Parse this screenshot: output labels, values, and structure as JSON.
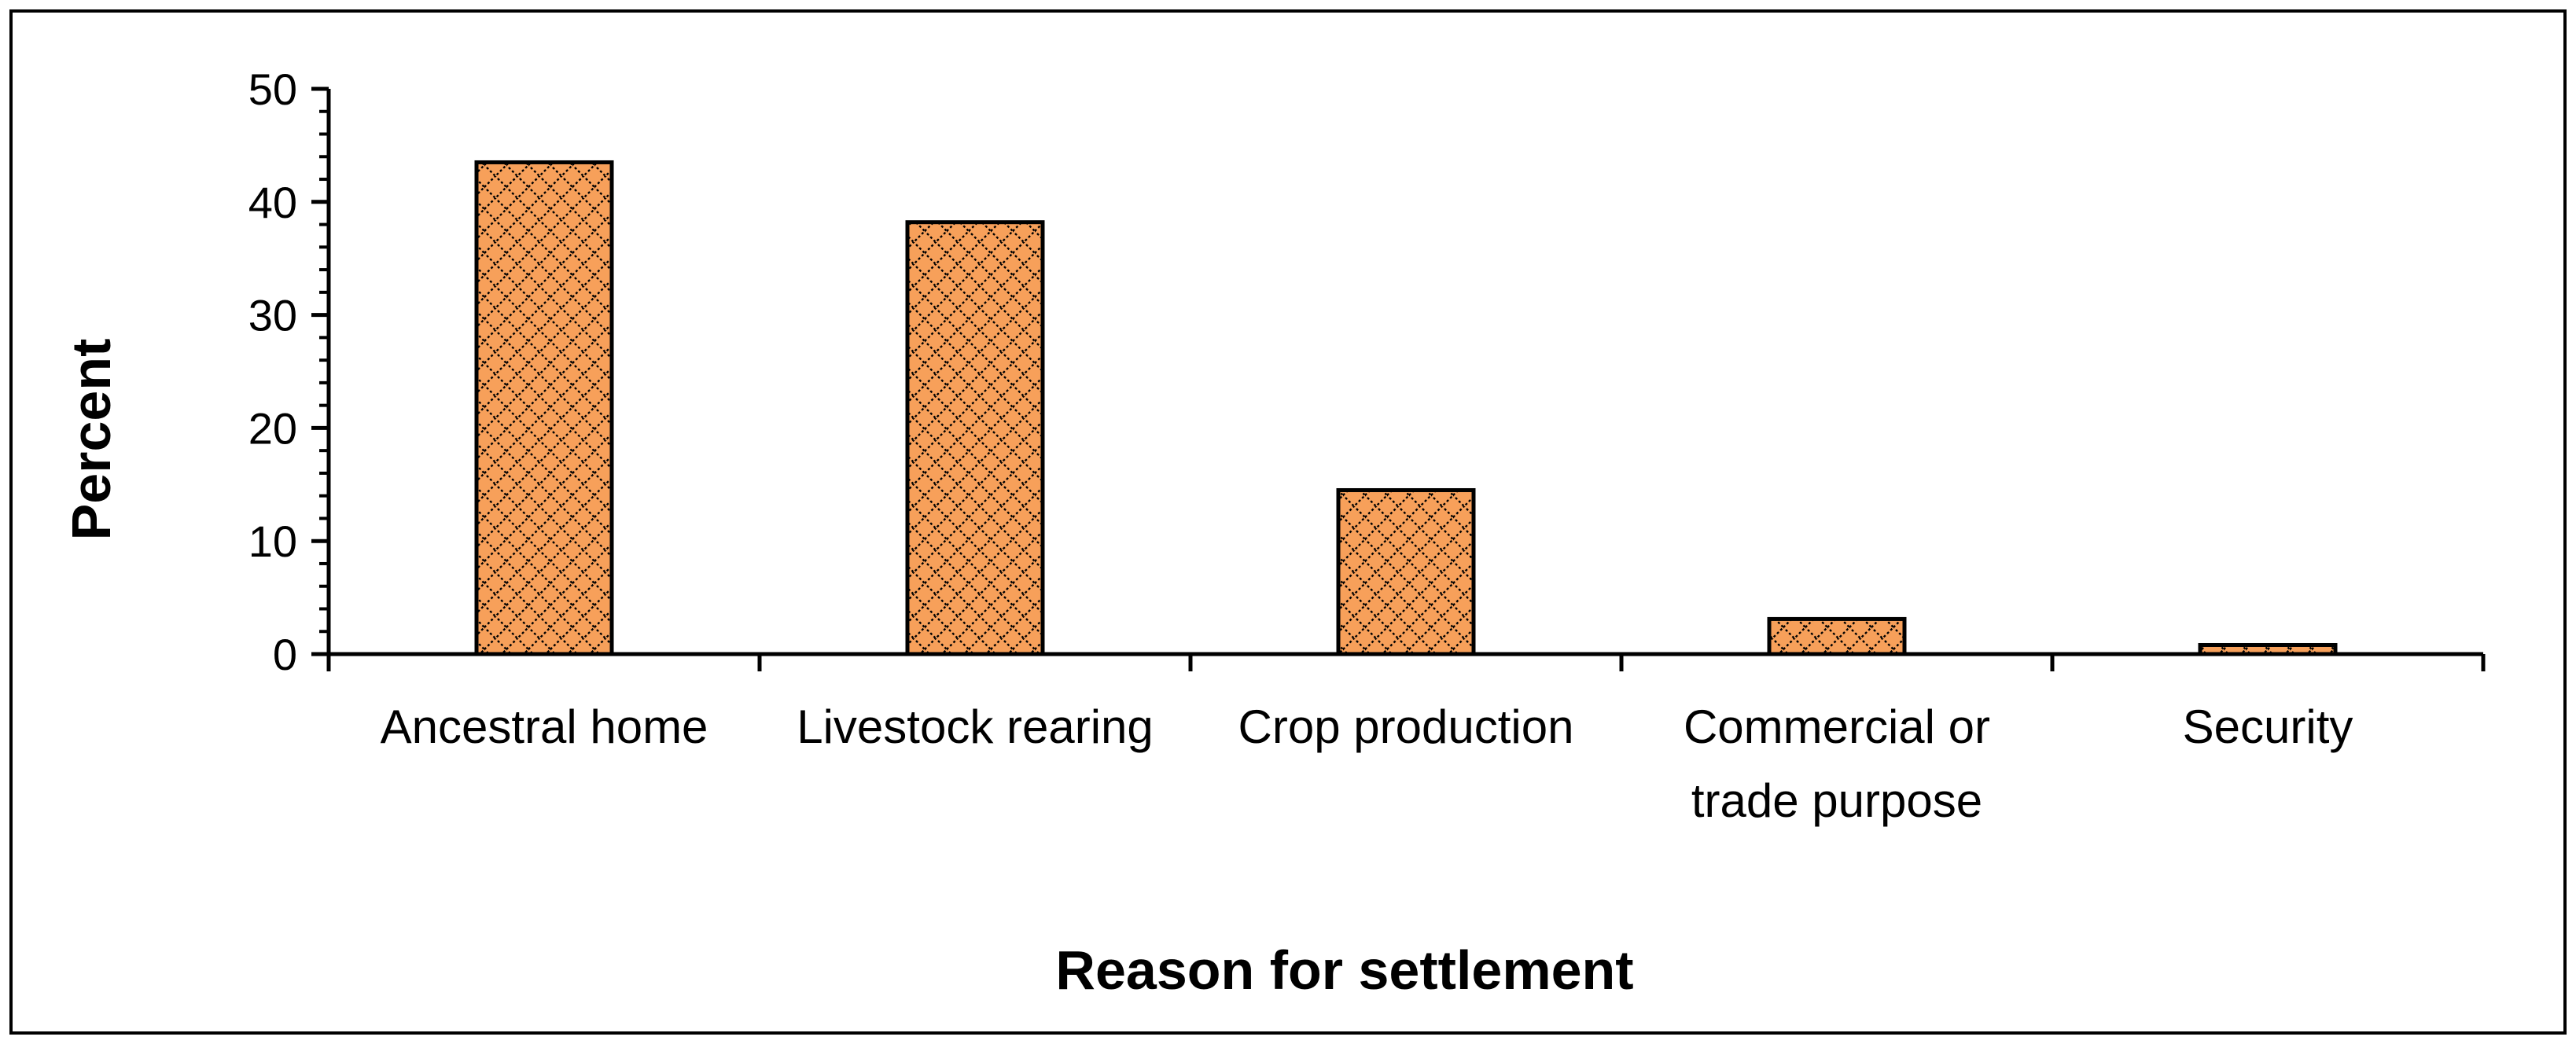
{
  "chart_data": {
    "type": "bar",
    "title": "",
    "xlabel": "Reason for settlement",
    "ylabel": "Percent",
    "categories": [
      [
        "Ancestral home"
      ],
      [
        "Livestock rearing"
      ],
      [
        "Crop production"
      ],
      [
        "Commercial or",
        "trade purpose"
      ],
      [
        "Security"
      ]
    ],
    "category_names": [
      "Ancestral home",
      "Livestock rearing",
      "Crop production",
      "Commercial or trade purpose",
      "Security"
    ],
    "values": [
      43.5,
      38.2,
      14.5,
      3.1,
      0.8
    ],
    "ylim": [
      0,
      50
    ],
    "yticks": [
      "0",
      "10",
      "20",
      "30",
      "40",
      "50"
    ],
    "grid": false,
    "legend": "none",
    "colors": {
      "bar_fill": "#f7a05a",
      "hatch": "#000000",
      "axis": "#000000",
      "frame": "#000000"
    }
  }
}
